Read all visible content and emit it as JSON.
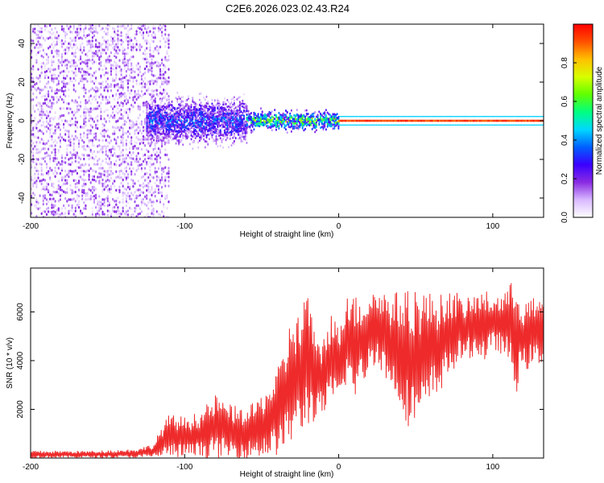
{
  "title": "C2E6.2026.023.02.43.R24",
  "chart_data": [
    {
      "type": "heatmap",
      "xlabel": "Height of straight line (km)",
      "ylabel": "Frequency (Hz)",
      "xlim": [
        -200,
        133
      ],
      "ylim": [
        -50,
        50
      ],
      "x_ticks": [
        -200,
        -100,
        0,
        100
      ],
      "x_tick_labels": [
        "-200",
        "-100",
        "0",
        "100"
      ],
      "y_ticks": [
        -40,
        -20,
        0,
        20,
        40
      ],
      "y_tick_labels": [
        "-40",
        "-20",
        "0",
        "20",
        "40"
      ],
      "colorbar": {
        "label": "Normalized spectral amplitude",
        "range": [
          0,
          1
        ],
        "ticks": [
          0.0,
          0.2,
          0.4,
          0.6,
          0.8
        ],
        "tick_labels": [
          "0.0",
          "0.2",
          "0.4",
          "0.6",
          "0.8"
        ],
        "colors": [
          "#ffffff",
          "#d8b8ff",
          "#8a2be2",
          "#3a00ff",
          "#0060ff",
          "#00d8ff",
          "#00ff80",
          "#60ff00",
          "#d8ff00",
          "#ffc000",
          "#ff5000",
          "#ff0000"
        ]
      },
      "regions": [
        {
          "name": "noise",
          "x_range": [
            -200,
            -110
          ],
          "freq_spread": 50,
          "amplitude": 0.1
        },
        {
          "name": "onset",
          "x_range": [
            -125,
            -60
          ],
          "freq_spread": 12,
          "amplitude": 0.3
        },
        {
          "name": "narrowing",
          "x_range": [
            -60,
            0
          ],
          "freq_spread": 5,
          "amplitude": 0.55
        },
        {
          "name": "strong_line",
          "x_range": [
            0,
            133
          ],
          "freq_spread": 1,
          "amplitude": 0.98
        }
      ]
    },
    {
      "type": "line",
      "xlabel": "Height of straight line (km)",
      "ylabel": "SNR (10 * v/v)",
      "xlim": [
        -200,
        133
      ],
      "ylim": [
        0,
        7800
      ],
      "x_ticks": [
        -200,
        -100,
        0,
        100
      ],
      "x_tick_labels": [
        "-200",
        "-100",
        "0",
        "100"
      ],
      "y_ticks": [
        2000,
        4000,
        6000
      ],
      "y_tick_labels": [
        "2000",
        "4000",
        "6000"
      ],
      "line_color": "#ee2a2a",
      "series": [
        {
          "name": "SNR",
          "x": [
            -200,
            -180,
            -160,
            -140,
            -130,
            -120,
            -115,
            -110,
            -100,
            -90,
            -80,
            -70,
            -60,
            -50,
            -40,
            -35,
            -30,
            -25,
            -20,
            -15,
            -10,
            -5,
            0,
            5,
            10,
            15,
            20,
            25,
            30,
            35,
            40,
            45,
            50,
            55,
            60,
            65,
            70,
            75,
            80,
            85,
            90,
            95,
            100,
            105,
            110,
            115,
            120,
            125,
            133
          ],
          "upper": [
            300,
            300,
            300,
            350,
            400,
            600,
            1300,
            1800,
            1700,
            1900,
            2600,
            2200,
            2000,
            2600,
            3600,
            4600,
            6200,
            5800,
            7500,
            4700,
            5000,
            6200,
            5300,
            7200,
            6700,
            6600,
            6900,
            7000,
            6900,
            6800,
            6900,
            6900,
            7100,
            7000,
            6800,
            6700,
            6800,
            7000,
            6500,
            6600,
            6800,
            6900,
            6700,
            6800,
            7000,
            7600,
            6400,
            6600,
            6500
          ],
          "lower": [
            0,
            0,
            0,
            0,
            0,
            0,
            0,
            0,
            0,
            0,
            0,
            0,
            0,
            0,
            100,
            300,
            600,
            900,
            1300,
            1500,
            1700,
            2000,
            2200,
            3000,
            2400,
            2900,
            3500,
            4000,
            3200,
            2600,
            2100,
            1300,
            1200,
            1300,
            2200,
            2600,
            3200,
            3600,
            4000,
            4100,
            4200,
            3900,
            4400,
            4300,
            3900,
            2600,
            3500,
            3700,
            3800
          ]
        }
      ]
    }
  ]
}
